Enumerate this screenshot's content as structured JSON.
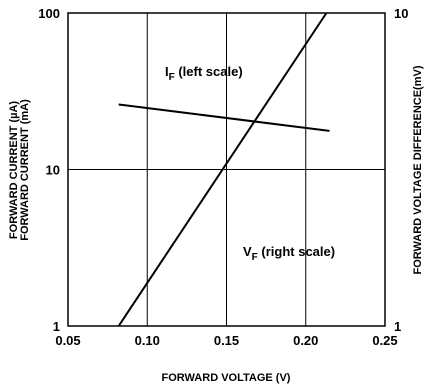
{
  "chart_data": {
    "type": "line",
    "x_axis": {
      "label": "FORWARD VOLTAGE (V)",
      "range": [
        0.05,
        0.25
      ],
      "ticks": [
        "0.05",
        "0.10",
        "0.15",
        "0.20",
        "0.25"
      ],
      "scale": "linear"
    },
    "y_left": {
      "label_line1": "FORWARD CURRENT (µA)",
      "label_line2": "FORWARD CURRENT (mA)",
      "range": [
        1,
        100
      ],
      "scale": "log",
      "ticks": [
        "1",
        "10",
        "100"
      ]
    },
    "y_right": {
      "label": "FORWARD VOLTAGE DIFFERENCE(mV)",
      "range": [
        1,
        10
      ],
      "scale": "log",
      "ticks": [
        "1",
        "10"
      ]
    },
    "grid": true,
    "series": [
      {
        "name_main": "I",
        "name_sub": "F",
        "name_rest": " (left scale)",
        "axis": "left",
        "x": [
          0.082,
          0.213
        ],
        "y": [
          1.0,
          100
        ]
      },
      {
        "name_main": "V",
        "name_sub": "F",
        "name_rest": " (right scale)",
        "axis": "right",
        "x": [
          0.082,
          0.215
        ],
        "y": [
          5.1,
          4.2
        ]
      }
    ]
  }
}
